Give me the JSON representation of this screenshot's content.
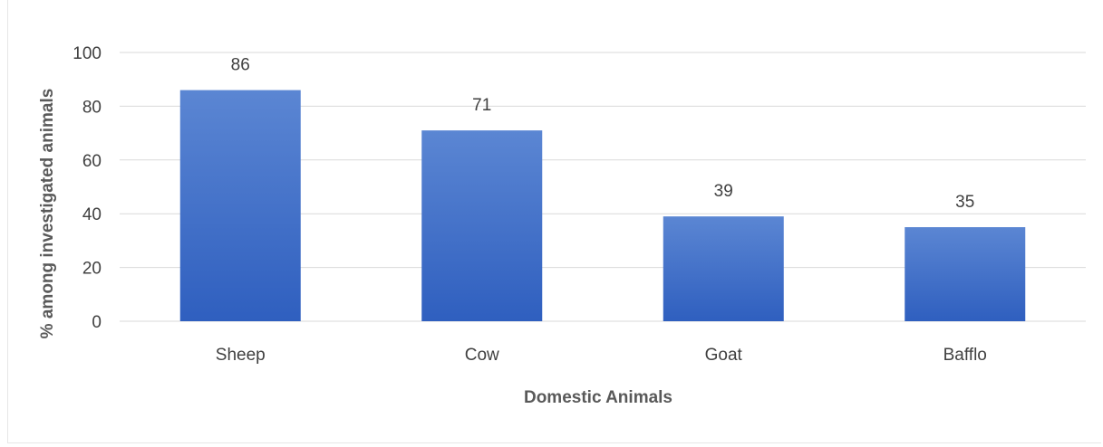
{
  "chart_data": {
    "type": "bar",
    "categories": [
      "Sheep",
      "Cow",
      "Goat",
      "Bafflo"
    ],
    "values": [
      86,
      71,
      39,
      35
    ],
    "data_labels": [
      "86",
      "71",
      "39",
      "35"
    ],
    "xlabel": "Domestic Animals",
    "ylabel": "% among investigated animals",
    "ylim": [
      0,
      100
    ],
    "yticks": [
      0,
      20,
      40,
      60,
      80,
      100
    ],
    "ytick_labels": [
      "0",
      "20",
      "40",
      "60",
      "80",
      "100"
    ],
    "grid": true,
    "legend": "none",
    "colors": {
      "bar_top": "#5b86d3",
      "bar_bottom": "#2f5fbf",
      "grid": "#d9d9d9",
      "text": "#404040"
    }
  }
}
